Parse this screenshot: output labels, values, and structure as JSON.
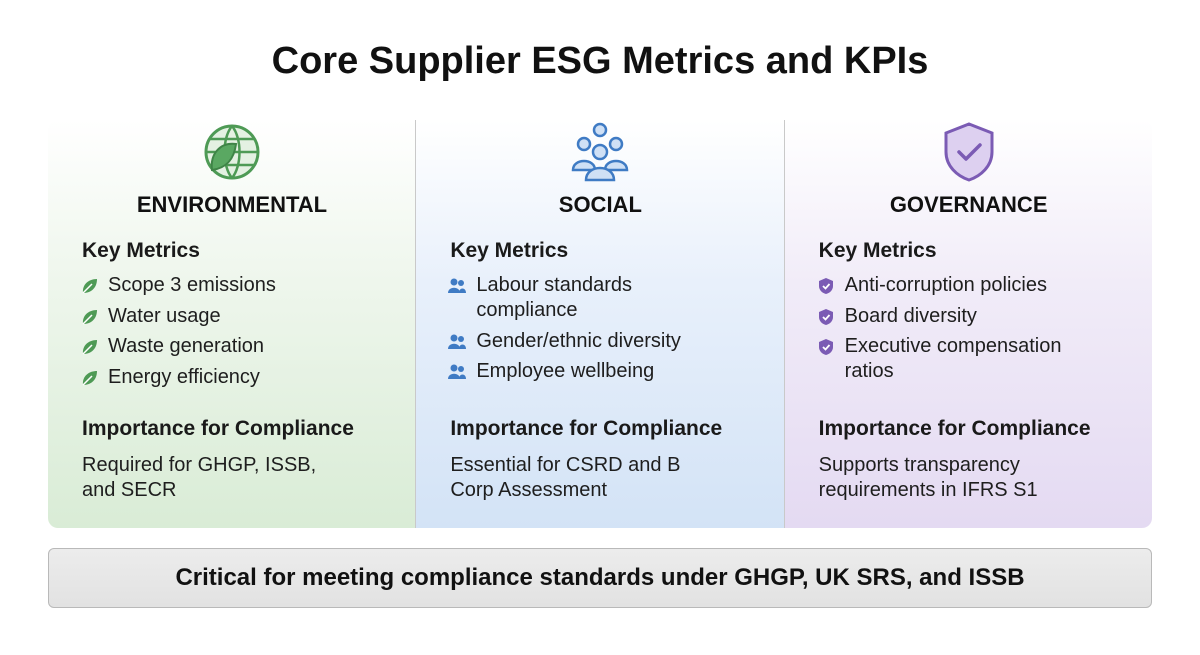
{
  "title": "Core Supplier ESG Metrics and KPIs",
  "columns": [
    {
      "heading": "ENVIRONMENTAL",
      "metrics_label": "Key Metrics",
      "metrics": [
        "Scope 3 emissions",
        "Water usage",
        "Waste generation",
        "Energy efficiency"
      ],
      "importance_label": "Importance for Compliance",
      "importance": "Required for GHGP, ISSB, and SECR"
    },
    {
      "heading": "SOCIAL",
      "metrics_label": "Key Metrics",
      "metrics": [
        "Labour standards compliance",
        "Gender/ethnic diversity",
        "Employee wellbeing"
      ],
      "importance_label": "Importance for Compliance",
      "importance": "Essential for CSRD and B Corp Assessment"
    },
    {
      "heading": "GOVERNANCE",
      "metrics_label": "Key Metrics",
      "metrics": [
        "Anti-corruption policies",
        "Board diversity",
        "Executive compensation ratios"
      ],
      "importance_label": "Importance for Compliance",
      "importance": "Supports transparency requirements in IFRS S1"
    }
  ],
  "footer": "Critical for meeting compliance standards under GHGP, UK SRS, and ISSB"
}
